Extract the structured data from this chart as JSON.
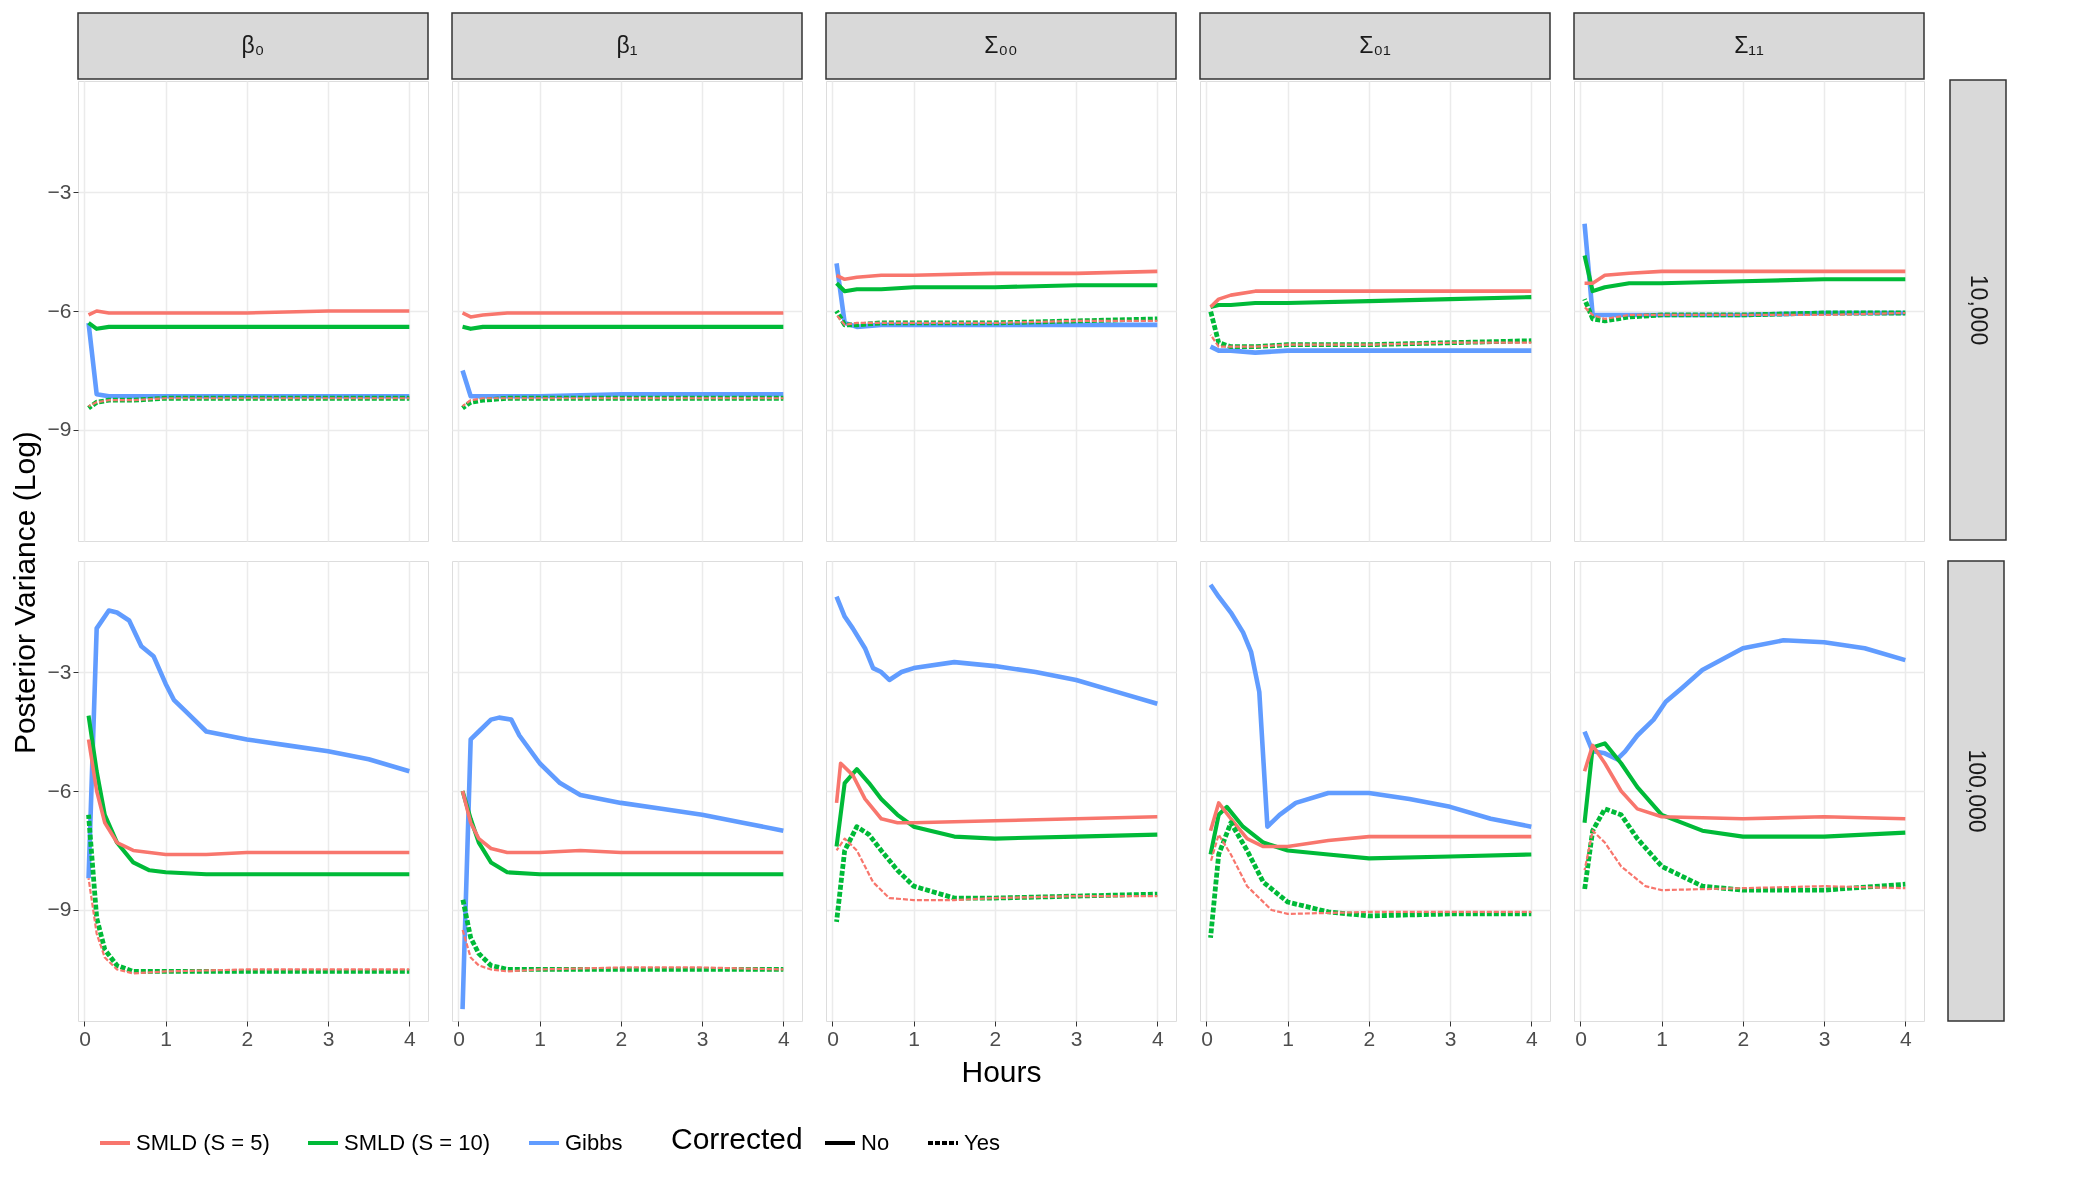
{
  "chart_data": [
    {
      "type": "line",
      "title": "β₀",
      "ylabel": "Posterior Variance (Log)",
      "legend_title": "Corrected",
      "legend": "bottom",
      "annotations": [
        "No",
        "Yes"
      ],
      "xlim": [
        -0.08,
        4.23
      ],
      "ylim": [
        -11.8,
        -0.2
      ],
      "xticks": [
        0,
        1,
        2,
        3,
        4
      ],
      "yticks": [
        -3,
        -6,
        -9
      ],
      "grid": true,
      "tick_labels": "y",
      "series": [
        {
          "name": "SMLD (S = 5)",
          "color": "#f8766d",
          "line_style": "solid",
          "x": [
            0.05,
            0.15,
            0.3,
            0.6,
            1,
            2,
            3,
            4
          ],
          "values": [
            -6.1,
            -6.0,
            -6.05,
            -6.05,
            -6.05,
            -6.05,
            -6.0,
            -6.0
          ]
        },
        {
          "color": "#f8766d",
          "line_style": "dashed",
          "x": [
            0.05,
            0.15,
            0.3,
            0.6,
            1,
            2,
            3,
            4
          ],
          "values": [
            -8.4,
            -8.3,
            -8.25,
            -8.25,
            -8.2,
            -8.2,
            -8.2,
            -8.2
          ]
        },
        {
          "name": "SMLD (S = 10)",
          "color": "#00ba38",
          "line_style": "solid",
          "x": [
            0.05,
            0.15,
            0.3,
            0.6,
            1,
            2,
            3,
            4
          ],
          "values": [
            -6.3,
            -6.45,
            -6.4,
            -6.4,
            -6.4,
            -6.4,
            -6.4,
            -6.4
          ]
        },
        {
          "color": "#00ba38",
          "line_style": "dashed",
          "x": [
            0.05,
            0.15,
            0.3,
            0.6,
            1,
            2,
            3,
            4
          ],
          "values": [
            -8.45,
            -8.3,
            -8.25,
            -8.25,
            -8.2,
            -8.2,
            -8.2,
            -8.2
          ]
        },
        {
          "name": "Gibbs",
          "color": "#619cff",
          "line_style": "solid",
          "x": [
            0.05,
            0.15,
            0.3,
            0.6,
            1,
            2,
            3,
            4
          ],
          "values": [
            -6.3,
            -8.1,
            -8.15,
            -8.15,
            -8.15,
            -8.15,
            -8.15,
            -8.15
          ]
        }
      ]
    },
    {
      "type": "line",
      "title": "β₁",
      "xlim": [
        -0.08,
        4.23
      ],
      "ylim": [
        -11.8,
        -0.2
      ],
      "xticks": [
        0,
        1,
        2,
        3,
        4
      ],
      "yticks": [
        -3,
        -6,
        -9
      ],
      "grid": true,
      "tick_labels": false,
      "series": [
        {
          "name": "SMLD (S = 5)",
          "color": "#f8766d",
          "line_style": "solid",
          "x": [
            0.05,
            0.15,
            0.3,
            0.6,
            1,
            2,
            3,
            4
          ],
          "values": [
            -6.05,
            -6.15,
            -6.1,
            -6.05,
            -6.05,
            -6.05,
            -6.05,
            -6.05
          ]
        },
        {
          "name": "SMLD (S = 5)",
          "color": "#f8766d",
          "line_style": "dashed",
          "x": [
            0.05,
            0.15,
            0.3,
            0.6,
            1,
            2,
            3,
            4
          ],
          "values": [
            -8.4,
            -8.25,
            -8.2,
            -8.2,
            -8.2,
            -8.2,
            -8.2,
            -8.2
          ]
        },
        {
          "name": "SMLD (S = 10)",
          "color": "#00ba38",
          "line_style": "solid",
          "x": [
            0.05,
            0.15,
            0.3,
            0.6,
            1,
            2,
            3,
            4
          ],
          "values": [
            -6.4,
            -6.45,
            -6.4,
            -6.4,
            -6.4,
            -6.4,
            -6.4,
            -6.4
          ]
        },
        {
          "name": "SMLD (S = 10)",
          "color": "#00ba38",
          "line_style": "dashed",
          "x": [
            0.05,
            0.15,
            0.3,
            0.6,
            1,
            2,
            3,
            4
          ],
          "values": [
            -8.45,
            -8.3,
            -8.25,
            -8.2,
            -8.2,
            -8.2,
            -8.2,
            -8.2
          ]
        },
        {
          "name": "Gibbs",
          "color": "#619cff",
          "line_style": "solid",
          "x": [
            0.05,
            0.15,
            0.3,
            0.6,
            1,
            2,
            3,
            4
          ],
          "values": [
            -7.5,
            -8.15,
            -8.15,
            -8.15,
            -8.15,
            -8.1,
            -8.1,
            -8.1
          ]
        }
      ]
    },
    {
      "type": "line",
      "title": "Σ₀₀",
      "xlim": [
        -0.08,
        4.23
      ],
      "ylim": [
        -11.8,
        -0.2
      ],
      "xticks": [
        0,
        1,
        2,
        3,
        4
      ],
      "yticks": [
        -3,
        -6,
        -9
      ],
      "grid": true,
      "tick_labels": false,
      "series": [
        {
          "name": "SMLD (S = 5)",
          "color": "#f8766d",
          "line_style": "solid",
          "x": [
            0.05,
            0.15,
            0.3,
            0.6,
            1,
            2,
            3,
            4
          ],
          "values": [
            -5.1,
            -5.2,
            -5.15,
            -5.1,
            -5.1,
            -5.05,
            -5.05,
            -5.0
          ]
        },
        {
          "name": "SMLD (S = 5)",
          "color": "#f8766d",
          "line_style": "dashed",
          "x": [
            0.05,
            0.15,
            0.3,
            0.6,
            1,
            2,
            3,
            4
          ],
          "values": [
            -6.1,
            -6.35,
            -6.3,
            -6.3,
            -6.3,
            -6.3,
            -6.25,
            -6.25
          ]
        },
        {
          "name": "SMLD (S = 10)",
          "color": "#00ba38",
          "line_style": "solid",
          "x": [
            0.05,
            0.15,
            0.3,
            0.6,
            1,
            2,
            3,
            4
          ],
          "values": [
            -5.3,
            -5.5,
            -5.45,
            -5.45,
            -5.4,
            -5.4,
            -5.35,
            -5.35
          ]
        },
        {
          "name": "SMLD (S = 10)",
          "color": "#00ba38",
          "line_style": "dashed",
          "x": [
            0.05,
            0.15,
            0.3,
            0.6,
            1,
            2,
            3,
            4
          ],
          "values": [
            -6.0,
            -6.35,
            -6.35,
            -6.3,
            -6.3,
            -6.3,
            -6.25,
            -6.2
          ]
        },
        {
          "name": "Gibbs",
          "color": "#619cff",
          "line_style": "solid",
          "x": [
            0.05,
            0.15,
            0.3,
            0.6,
            1,
            2,
            3,
            4
          ],
          "values": [
            -4.8,
            -6.3,
            -6.4,
            -6.35,
            -6.35,
            -6.35,
            -6.35,
            -6.35
          ]
        }
      ]
    },
    {
      "type": "line",
      "title": "Σ₀₁",
      "xlim": [
        -0.08,
        4.23
      ],
      "ylim": [
        -11.8,
        -0.2
      ],
      "xticks": [
        0,
        1,
        2,
        3,
        4
      ],
      "yticks": [
        -3,
        -6,
        -9
      ],
      "grid": true,
      "tick_labels": false,
      "series": [
        {
          "name": "SMLD (S = 5)",
          "color": "#f8766d",
          "line_style": "solid",
          "x": [
            0.05,
            0.15,
            0.3,
            0.6,
            1,
            2,
            3,
            4
          ],
          "values": [
            -5.9,
            -5.7,
            -5.6,
            -5.5,
            -5.5,
            -5.5,
            -5.5,
            -5.5
          ]
        },
        {
          "name": "SMLD (S = 5)",
          "color": "#f8766d",
          "line_style": "dashed",
          "x": [
            0.05,
            0.15,
            0.3,
            0.6,
            1,
            2,
            3,
            4
          ],
          "values": [
            -6.6,
            -6.9,
            -6.9,
            -6.9,
            -6.85,
            -6.85,
            -6.8,
            -6.8
          ]
        },
        {
          "name": "SMLD (S = 10)",
          "color": "#00ba38",
          "line_style": "solid",
          "x": [
            0.05,
            0.15,
            0.3,
            0.6,
            1,
            2,
            3,
            4
          ],
          "values": [
            -5.9,
            -5.85,
            -5.85,
            -5.8,
            -5.8,
            -5.75,
            -5.7,
            -5.65
          ]
        },
        {
          "name": "SMLD (S = 10)",
          "color": "#00ba38",
          "line_style": "dashed",
          "x": [
            0.05,
            0.15,
            0.3,
            0.6,
            1,
            2,
            3,
            4
          ],
          "values": [
            -6.0,
            -6.8,
            -6.9,
            -6.9,
            -6.85,
            -6.85,
            -6.8,
            -6.75
          ]
        },
        {
          "name": "Gibbs",
          "color": "#619cff",
          "line_style": "solid",
          "x": [
            0.05,
            0.15,
            0.3,
            0.6,
            1,
            2,
            3,
            4
          ],
          "values": [
            -6.9,
            -7.0,
            -7.0,
            -7.05,
            -7.0,
            -7.0,
            -7.0,
            -7.0
          ]
        }
      ]
    },
    {
      "type": "line",
      "title": "Σ₁₁",
      "annotations": [
        "10,000"
      ],
      "xlim": [
        -0.08,
        4.23
      ],
      "ylim": [
        -11.8,
        -0.2
      ],
      "xticks": [
        0,
        1,
        2,
        3,
        4
      ],
      "yticks": [
        -3,
        -6,
        -9
      ],
      "grid": true,
      "tick_labels": false,
      "series": [
        {
          "name": "SMLD (S = 5)",
          "color": "#f8766d",
          "line_style": "solid",
          "x": [
            0.05,
            0.15,
            0.3,
            0.6,
            1,
            2,
            3,
            4
          ],
          "values": [
            -5.3,
            -5.3,
            -5.1,
            -5.05,
            -5.0,
            -5.0,
            -5.0,
            -5.0
          ]
        },
        {
          "name": "SMLD (S = 5)",
          "color": "#f8766d",
          "line_style": "dashed",
          "x": [
            0.05,
            0.15,
            0.3,
            0.6,
            1,
            2,
            3,
            4
          ],
          "values": [
            -5.9,
            -6.1,
            -6.2,
            -6.1,
            -6.1,
            -6.1,
            -6.1,
            -6.05
          ]
        },
        {
          "name": "SMLD (S = 10)",
          "color": "#00ba38",
          "line_style": "solid",
          "x": [
            0.05,
            0.15,
            0.3,
            0.6,
            1,
            2,
            3,
            4
          ],
          "values": [
            -4.6,
            -5.5,
            -5.4,
            -5.3,
            -5.3,
            -5.25,
            -5.2,
            -5.2
          ]
        },
        {
          "name": "SMLD (S = 10)",
          "color": "#00ba38",
          "line_style": "dashed",
          "x": [
            0.05,
            0.15,
            0.3,
            0.6,
            1,
            2,
            3,
            4
          ],
          "values": [
            -5.7,
            -6.2,
            -6.25,
            -6.15,
            -6.1,
            -6.1,
            -6.05,
            -6.05
          ]
        },
        {
          "name": "Gibbs",
          "color": "#619cff",
          "line_style": "solid",
          "x": [
            0.05,
            0.15,
            0.3,
            0.6,
            1,
            2,
            3,
            4
          ],
          "values": [
            -3.8,
            -6.1,
            -6.1,
            -6.1,
            -6.1,
            -6.1,
            -6.05,
            -6.05
          ]
        }
      ]
    },
    {
      "type": "line",
      "xlim": [
        -0.08,
        4.23
      ],
      "ylim": [
        -11.8,
        -0.2
      ],
      "xticks": [
        0,
        1,
        2,
        3,
        4
      ],
      "yticks": [
        -3,
        -6,
        -9
      ],
      "grid": true,
      "series": [
        {
          "name": "SMLD (S = 5)",
          "color": "#f8766d",
          "line_style": "solid",
          "x": [
            0.05,
            0.15,
            0.25,
            0.4,
            0.6,
            0.8,
            1,
            1.5,
            2,
            3,
            4
          ],
          "values": [
            -4.7,
            -6.0,
            -6.8,
            -7.3,
            -7.5,
            -7.55,
            -7.6,
            -7.6,
            -7.55,
            -7.55,
            -7.55
          ]
        },
        {
          "name": "SMLD (S = 5)",
          "color": "#f8766d",
          "line_style": "dashed",
          "x": [
            0.05,
            0.15,
            0.25,
            0.4,
            0.6,
            1,
            2,
            3,
            4
          ],
          "values": [
            -8.2,
            -9.6,
            -10.2,
            -10.5,
            -10.6,
            -10.55,
            -10.5,
            -10.5,
            -10.5
          ]
        },
        {
          "name": "SMLD (S = 10)",
          "color": "#00ba38",
          "line_style": "solid",
          "x": [
            0.05,
            0.15,
            0.25,
            0.4,
            0.6,
            0.8,
            1,
            1.5,
            2,
            3,
            4
          ],
          "values": [
            -4.1,
            -5.5,
            -6.6,
            -7.3,
            -7.8,
            -8.0,
            -8.05,
            -8.1,
            -8.1,
            -8.1,
            -8.1
          ]
        },
        {
          "name": "SMLD (S = 10)",
          "color": "#00ba38",
          "line_style": "dashed",
          "x": [
            0.05,
            0.15,
            0.25,
            0.4,
            0.6,
            1,
            2,
            3,
            4
          ],
          "values": [
            -6.6,
            -9.2,
            -10.0,
            -10.4,
            -10.55,
            -10.55,
            -10.55,
            -10.55,
            -10.55
          ]
        },
        {
          "name": "Gibbs",
          "color": "#619cff",
          "line_style": "solid",
          "x": [
            0.05,
            0.15,
            0.3,
            0.4,
            0.55,
            0.7,
            0.85,
            1,
            1.1,
            1.25,
            1.5,
            2,
            2.5,
            3,
            3.5,
            4
          ],
          "values": [
            -8.2,
            -1.9,
            -1.45,
            -1.5,
            -1.7,
            -2.35,
            -2.6,
            -3.3,
            -3.7,
            -4.0,
            -4.5,
            -4.7,
            -4.85,
            -5.0,
            -5.2,
            -5.5
          ]
        }
      ]
    },
    {
      "type": "line",
      "xlim": [
        -0.08,
        4.23
      ],
      "ylim": [
        -11.8,
        -0.2
      ],
      "xticks": [
        0,
        1,
        2,
        3,
        4
      ],
      "yticks": [
        -3,
        -6,
        -9
      ],
      "grid": true,
      "tick_labels": "x",
      "series": [
        {
          "name": "SMLD (S = 5)",
          "color": "#f8766d",
          "line_style": "solid",
          "x": [
            0.05,
            0.15,
            0.25,
            0.4,
            0.6,
            1,
            1.5,
            2,
            3,
            4
          ],
          "values": [
            -6.0,
            -6.8,
            -7.2,
            -7.45,
            -7.55,
            -7.55,
            -7.5,
            -7.55,
            -7.55,
            -7.55
          ]
        },
        {
          "name": "SMLD (S = 5)",
          "color": "#f8766d",
          "line_style": "dashed",
          "x": [
            0.05,
            0.15,
            0.25,
            0.4,
            0.6,
            1,
            2,
            3,
            4
          ],
          "values": [
            -9.5,
            -10.2,
            -10.4,
            -10.5,
            -10.55,
            -10.5,
            -10.45,
            -10.45,
            -10.5
          ]
        },
        {
          "name": "SMLD (S = 10)",
          "color": "#00ba38",
          "line_style": "solid",
          "x": [
            0.05,
            0.15,
            0.25,
            0.4,
            0.6,
            1,
            2,
            4
          ],
          "values": [
            -6.0,
            -6.7,
            -7.3,
            -7.8,
            -8.05,
            -8.1,
            -8.1,
            -8.1
          ]
        },
        {
          "name": "SMLD (S = 10)",
          "color": "#00ba38",
          "line_style": "dashed",
          "x": [
            0.05,
            0.15,
            0.25,
            0.4,
            0.6,
            1,
            2,
            3,
            4
          ],
          "values": [
            -8.7,
            -9.7,
            -10.1,
            -10.4,
            -10.5,
            -10.5,
            -10.5,
            -10.5,
            -10.5
          ]
        },
        {
          "name": "Gibbs",
          "color": "#619cff",
          "line_style": "solid",
          "x": [
            0.05,
            0.15,
            0.25,
            0.4,
            0.5,
            0.65,
            0.75,
            1,
            1.25,
            1.5,
            2,
            2.5,
            3,
            3.5,
            4
          ],
          "values": [
            -11.5,
            -4.7,
            -4.5,
            -4.2,
            -4.15,
            -4.2,
            -4.6,
            -5.3,
            -5.8,
            -6.1,
            -6.3,
            -6.45,
            -6.6,
            -6.8,
            -7.0
          ]
        }
      ]
    },
    {
      "type": "line",
      "xlabel": "Hours",
      "xlim": [
        -0.08,
        4.23
      ],
      "ylim": [
        -11.8,
        -0.2
      ],
      "xticks": [
        0,
        1,
        2,
        3,
        4
      ],
      "yticks": [
        -3,
        -6,
        -9
      ],
      "grid": true,
      "tick_labels": "x",
      "series": [
        {
          "name": "SMLD (S = 5)",
          "color": "#f8766d",
          "line_style": "solid",
          "x": [
            0.05,
            0.1,
            0.25,
            0.4,
            0.6,
            0.8,
            1,
            2,
            3,
            4
          ],
          "values": [
            -6.3,
            -5.3,
            -5.6,
            -6.2,
            -6.7,
            -6.8,
            -6.8,
            -6.75,
            -6.7,
            -6.65
          ]
        },
        {
          "name": "SMLD (S = 5)",
          "color": "#f8766d",
          "line_style": "dashed",
          "x": [
            0.05,
            0.15,
            0.3,
            0.5,
            0.7,
            1,
            1.5,
            2,
            3,
            4
          ],
          "values": [
            -7.5,
            -7.2,
            -7.5,
            -8.3,
            -8.7,
            -8.75,
            -8.75,
            -8.7,
            -8.65,
            -8.65
          ]
        },
        {
          "name": "SMLD (S = 10)",
          "color": "#00ba38",
          "line_style": "solid",
          "x": [
            0.05,
            0.15,
            0.3,
            0.45,
            0.6,
            0.8,
            1,
            1.5,
            2,
            3,
            4
          ],
          "values": [
            -7.4,
            -5.8,
            -5.45,
            -5.8,
            -6.2,
            -6.6,
            -6.9,
            -7.15,
            -7.2,
            -7.15,
            -7.1
          ]
        },
        {
          "name": "SMLD (S = 10)",
          "color": "#00ba38",
          "line_style": "dashed",
          "x": [
            0.05,
            0.15,
            0.3,
            0.45,
            0.6,
            0.8,
            1,
            1.5,
            2,
            3,
            4
          ],
          "values": [
            -9.3,
            -7.5,
            -6.9,
            -7.1,
            -7.5,
            -8.0,
            -8.4,
            -8.7,
            -8.7,
            -8.65,
            -8.6
          ]
        },
        {
          "name": "Gibbs",
          "color": "#619cff",
          "line_style": "solid",
          "x": [
            0.05,
            0.15,
            0.25,
            0.4,
            0.5,
            0.6,
            0.7,
            0.85,
            1,
            1.5,
            2,
            2.5,
            3,
            3.5,
            4
          ],
          "values": [
            -1.1,
            -1.6,
            -1.9,
            -2.4,
            -2.9,
            -3.0,
            -3.2,
            -3.0,
            -2.9,
            -2.75,
            -2.85,
            -3.0,
            -3.2,
            -3.5,
            -3.8
          ]
        }
      ]
    },
    {
      "type": "line",
      "xlim": [
        -0.08,
        4.23
      ],
      "ylim": [
        -11.8,
        -0.2
      ],
      "xticks": [
        0,
        1,
        2,
        3,
        4
      ],
      "yticks": [
        -3,
        -6,
        -9
      ],
      "grid": true,
      "tick_labels": "x",
      "series": [
        {
          "name": "SMLD (S = 5)",
          "color": "#f8766d",
          "line_style": "solid",
          "x": [
            0.05,
            0.15,
            0.3,
            0.5,
            0.7,
            1,
            1.5,
            2,
            3,
            4
          ],
          "values": [
            -7.0,
            -6.3,
            -6.7,
            -7.2,
            -7.4,
            -7.4,
            -7.25,
            -7.15,
            -7.15,
            -7.15
          ]
        },
        {
          "name": "SMLD (S = 5)",
          "color": "#f8766d",
          "line_style": "dashed",
          "x": [
            0.05,
            0.15,
            0.3,
            0.5,
            0.8,
            1,
            2,
            3,
            4
          ],
          "values": [
            -7.8,
            -7.1,
            -7.6,
            -8.4,
            -9.0,
            -9.1,
            -9.05,
            -9.05,
            -9.05
          ]
        },
        {
          "name": "SMLD (S = 10)",
          "color": "#00ba38",
          "line_style": "solid",
          "x": [
            0.05,
            0.15,
            0.25,
            0.45,
            0.7,
            1,
            1.5,
            2,
            3,
            4
          ],
          "values": [
            -7.6,
            -6.6,
            -6.4,
            -6.9,
            -7.3,
            -7.5,
            -7.6,
            -7.7,
            -7.65,
            -7.6
          ]
        },
        {
          "name": "SMLD (S = 10)",
          "color": "#00ba38",
          "line_style": "dashed",
          "x": [
            0.05,
            0.15,
            0.3,
            0.5,
            0.7,
            1,
            1.5,
            2,
            3,
            4
          ],
          "values": [
            -9.7,
            -7.6,
            -6.8,
            -7.5,
            -8.3,
            -8.8,
            -9.05,
            -9.15,
            -9.1,
            -9.1
          ]
        },
        {
          "name": "Gibbs",
          "color": "#619cff",
          "line_style": "solid",
          "x": [
            0.05,
            0.15,
            0.3,
            0.45,
            0.55,
            0.65,
            0.75,
            0.9,
            1.1,
            1.5,
            2,
            2.5,
            3,
            3.5,
            4
          ],
          "values": [
            -0.8,
            -1.1,
            -1.5,
            -2.0,
            -2.5,
            -3.5,
            -6.9,
            -6.6,
            -6.3,
            -6.05,
            -6.05,
            -6.2,
            -6.4,
            -6.7,
            -6.9
          ]
        }
      ]
    },
    {
      "type": "line",
      "annotations": [
        "100,000"
      ],
      "xlim": [
        -0.08,
        4.23
      ],
      "ylim": [
        -11.8,
        -0.2
      ],
      "xticks": [
        0,
        1,
        2,
        3,
        4
      ],
      "yticks": [
        -3,
        -6,
        -9
      ],
      "grid": true,
      "tick_labels": "x",
      "series": [
        {
          "name": "SMLD (S = 5)",
          "color": "#f8766d",
          "line_style": "solid",
          "x": [
            0.05,
            0.15,
            0.3,
            0.5,
            0.7,
            1,
            2,
            3,
            4
          ],
          "values": [
            -5.5,
            -4.85,
            -5.3,
            -6.0,
            -6.45,
            -6.65,
            -6.7,
            -6.65,
            -6.7
          ]
        },
        {
          "name": "SMLD (S = 5)",
          "color": "#f8766d",
          "line_style": "dashed",
          "x": [
            0.05,
            0.15,
            0.3,
            0.5,
            0.8,
            1,
            2,
            3,
            4
          ],
          "values": [
            -8.0,
            -7.0,
            -7.3,
            -7.9,
            -8.4,
            -8.5,
            -8.45,
            -8.4,
            -8.45
          ]
        },
        {
          "name": "SMLD (S = 10)",
          "color": "#00ba38",
          "line_style": "solid",
          "x": [
            0.05,
            0.15,
            0.3,
            0.5,
            0.7,
            1,
            1.5,
            2,
            3,
            4
          ],
          "values": [
            -6.8,
            -4.9,
            -4.8,
            -5.3,
            -5.9,
            -6.6,
            -7.0,
            -7.15,
            -7.15,
            -7.05
          ]
        },
        {
          "name": "SMLD (S = 10)",
          "color": "#00ba38",
          "line_style": "dashed",
          "x": [
            0.05,
            0.15,
            0.3,
            0.5,
            0.7,
            1,
            1.5,
            2,
            3,
            4
          ],
          "values": [
            -8.5,
            -7.0,
            -6.45,
            -6.6,
            -7.2,
            -7.9,
            -8.4,
            -8.5,
            -8.5,
            -8.35
          ]
        },
        {
          "name": "Gibbs",
          "color": "#619cff",
          "line_style": "solid",
          "x": [
            0.05,
            0.15,
            0.3,
            0.45,
            0.55,
            0.7,
            0.9,
            1.05,
            1.25,
            1.5,
            2,
            2.5,
            3,
            3.5,
            4
          ],
          "values": [
            -4.5,
            -5.0,
            -5.05,
            -5.2,
            -5.0,
            -4.6,
            -4.2,
            -3.75,
            -3.4,
            -2.95,
            -2.4,
            -2.2,
            -2.25,
            -2.4,
            -2.7
          ]
        }
      ]
    }
  ]
}
